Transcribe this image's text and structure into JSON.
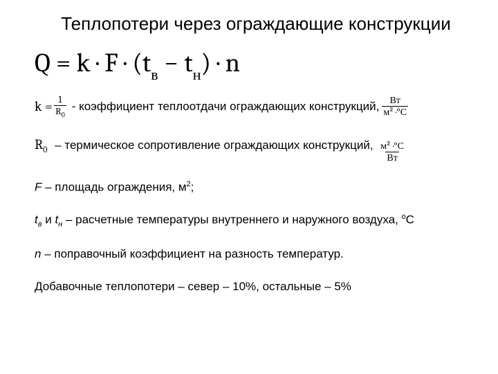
{
  "title": "Теплопотери через ограждающие конструкции",
  "mainFormula": "Q = k · F · (t",
  "mainFormula_v": "в",
  "mainFormula_mid": " − t",
  "mainFormula_n": "н",
  "mainFormula_end": ") · n",
  "kDef": {
    "lhs_k": "k = ",
    "frac_num": "1",
    "frac_den_R": "R",
    "frac_den_0": "0",
    "text": " - коэффициент теплоотдачи ограждающих конструкций, ",
    "unit_num": "Вт",
    "unit_den": "м² ·°С"
  },
  "r0Def": {
    "sym_R": "R",
    "sym_0": "0",
    "text": " – термическое сопротивление ограждающих конструкций, ",
    "unit_num": "м² ·°С",
    "unit_den": "Вт"
  },
  "fDef": {
    "sym": "F",
    "text": " – площадь ограждения, м",
    "sup": "2",
    "tail": ";"
  },
  "tDef": {
    "t1_sym": "t",
    "t1_sub": "в",
    "and": " и ",
    "t2_sym": "t",
    "t2_sub": "н",
    "text": " – расчетные температуры внутреннего и наружного воздуха,  ",
    "deg": "о",
    "unit": "С"
  },
  "nDef": {
    "sym": "n",
    "text": " – поправочный коэффициент на разность температур."
  },
  "extra": "Добавочные теплопотери – север – 10%, остальные – 5%",
  "colors": {
    "bg": "#ffffff",
    "text": "#000000"
  }
}
